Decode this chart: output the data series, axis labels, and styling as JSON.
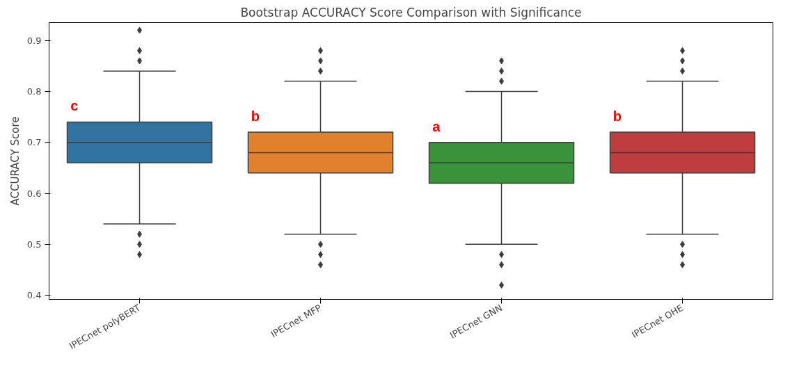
{
  "chart_data": {
    "type": "box",
    "title": "Bootstrap ACCURACY Score Comparison with Significance",
    "ylabel": "ACCURACY Score",
    "categories": [
      "IPECnet polyBERT",
      "IPECnet MFP",
      "IPECnet GNN",
      "IPECnet OHE"
    ],
    "colors": [
      "#3274a1",
      "#e1812c",
      "#3a923a",
      "#c03d3e"
    ],
    "boxes": [
      {
        "low": 0.54,
        "q1": 0.66,
        "median": 0.7,
        "q3": 0.74,
        "high": 0.84,
        "outliers": [
          0.86,
          0.88,
          0.92,
          0.52,
          0.5,
          0.48
        ]
      },
      {
        "low": 0.52,
        "q1": 0.64,
        "median": 0.68,
        "q3": 0.72,
        "high": 0.82,
        "outliers": [
          0.84,
          0.86,
          0.88,
          0.5,
          0.48,
          0.46
        ]
      },
      {
        "low": 0.5,
        "q1": 0.62,
        "median": 0.66,
        "q3": 0.7,
        "high": 0.8,
        "outliers": [
          0.82,
          0.84,
          0.86,
          0.48,
          0.46,
          0.42
        ]
      },
      {
        "low": 0.52,
        "q1": 0.64,
        "median": 0.68,
        "q3": 0.72,
        "high": 0.82,
        "outliers": [
          0.84,
          0.86,
          0.88,
          0.5,
          0.48,
          0.46
        ]
      }
    ],
    "annotations": [
      "c",
      "b",
      "a",
      "b"
    ],
    "marker": "diamond",
    "grid": false,
    "ylim": [
      0.392,
      0.935
    ],
    "yticks": [
      0.4,
      0.5,
      0.6,
      0.7,
      0.8,
      0.9
    ]
  }
}
